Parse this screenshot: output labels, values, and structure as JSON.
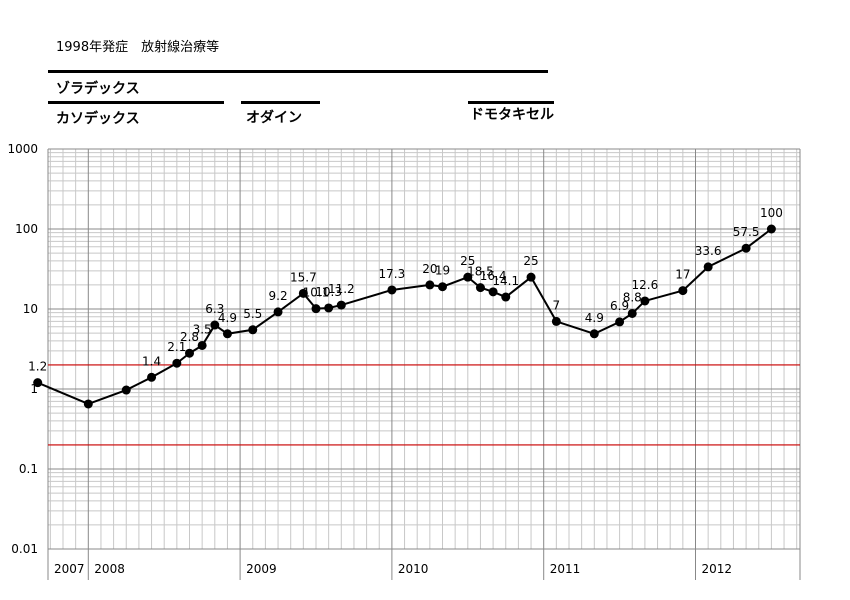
{
  "header": {
    "title": "1998年発症　放射線治療等"
  },
  "treatments": [
    {
      "label": "ゾラデックス"
    },
    {
      "label": "カソデックス"
    },
    {
      "label": "オダイン"
    },
    {
      "label": "ドモタキセル"
    }
  ],
  "chart_data": {
    "type": "line",
    "title": "1998年発症　放射線治療等",
    "yscale": "log",
    "ylim": [
      0.01,
      1000
    ],
    "y_ticks": [
      "1000",
      "100",
      "10",
      "1",
      "0.1",
      "0.01"
    ],
    "x_years": [
      "2007",
      "2008",
      "2009",
      "2010",
      "2011",
      "2012"
    ],
    "reference_lines": [
      2,
      0.2
    ],
    "reference_line_color": "#cc0000",
    "series_color": "#000000",
    "points": [
      {
        "date": "2007-09",
        "value": 1.2,
        "label": "1.2"
      },
      {
        "date": "2008-01",
        "value": 0.65,
        "label": ""
      },
      {
        "date": "2008-04",
        "value": 0.97,
        "label": ""
      },
      {
        "date": "2008-06",
        "value": 1.4,
        "label": "1.4"
      },
      {
        "date": "2008-08",
        "value": 2.1,
        "label": "2.1"
      },
      {
        "date": "2008-09",
        "value": 2.8,
        "label": "2.8"
      },
      {
        "date": "2008-10",
        "value": 3.5,
        "label": "3.5"
      },
      {
        "date": "2008-11",
        "value": 6.3,
        "label": "6.3"
      },
      {
        "date": "2008-12",
        "value": 4.9,
        "label": "4.9"
      },
      {
        "date": "2009-02",
        "value": 5.5,
        "label": "5.5"
      },
      {
        "date": "2009-04",
        "value": 9.2,
        "label": "9.2"
      },
      {
        "date": "2009-06",
        "value": 15.7,
        "label": "15.7"
      },
      {
        "date": "2009-07",
        "value": 10.1,
        "label": "10.1"
      },
      {
        "date": "2009-08",
        "value": 10.3,
        "label": "10.3"
      },
      {
        "date": "2009-09",
        "value": 11.2,
        "label": "11.2"
      },
      {
        "date": "2010-01",
        "value": 17.3,
        "label": "17.3"
      },
      {
        "date": "2010-04",
        "value": 20,
        "label": "20"
      },
      {
        "date": "2010-05",
        "value": 19,
        "label": "19"
      },
      {
        "date": "2010-07",
        "value": 25,
        "label": "25"
      },
      {
        "date": "2010-08",
        "value": 18.5,
        "label": "18.5"
      },
      {
        "date": "2010-09",
        "value": 16.4,
        "label": "16.4"
      },
      {
        "date": "2010-10",
        "value": 14.1,
        "label": "14.1"
      },
      {
        "date": "2010-12",
        "value": 25,
        "label": "25"
      },
      {
        "date": "2011-02",
        "value": 7,
        "label": "7"
      },
      {
        "date": "2011-05",
        "value": 4.9,
        "label": "4.9"
      },
      {
        "date": "2011-07",
        "value": 6.9,
        "label": "6.9"
      },
      {
        "date": "2011-08",
        "value": 8.8,
        "label": "8.8"
      },
      {
        "date": "2011-09",
        "value": 12.6,
        "label": "12.6"
      },
      {
        "date": "2011-12",
        "value": 17,
        "label": "17"
      },
      {
        "date": "2012-02",
        "value": 33.6,
        "label": "33.6"
      },
      {
        "date": "2012-05",
        "value": 57.5,
        "label": "57.5"
      },
      {
        "date": "2012-07",
        "value": 100,
        "label": "100"
      }
    ]
  }
}
